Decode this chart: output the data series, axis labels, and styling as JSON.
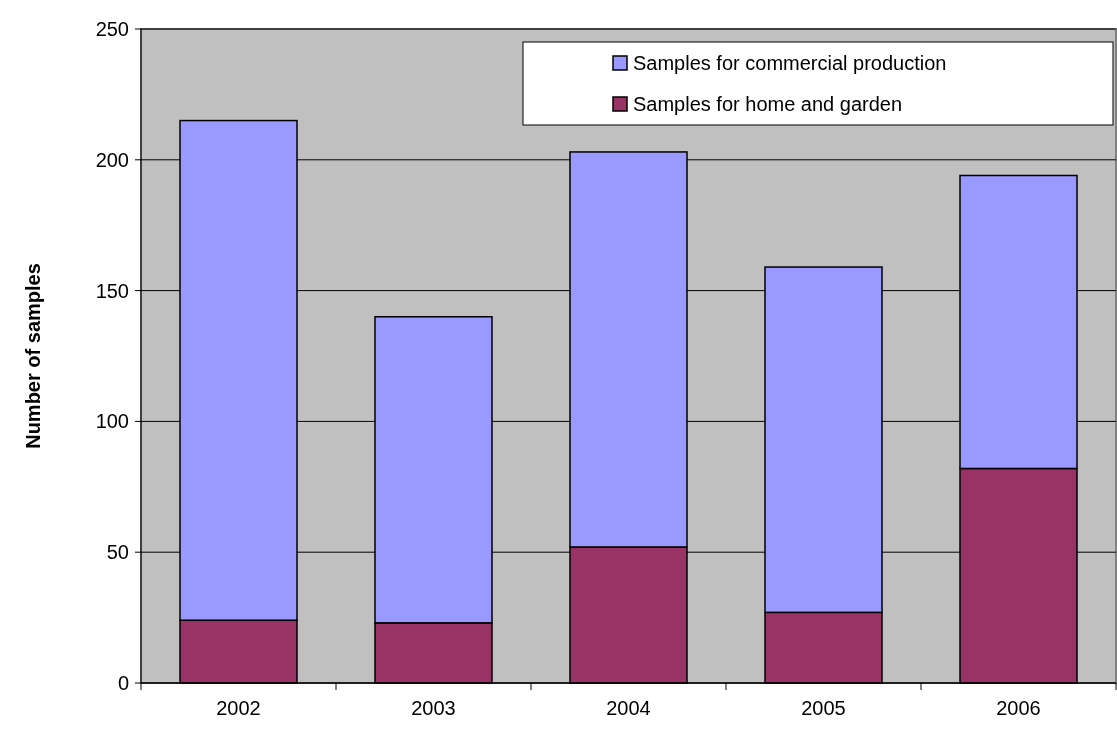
{
  "chart_data": {
    "type": "bar",
    "stacked": true,
    "ylabel": "Number of samples",
    "categories": [
      "2002",
      "2003",
      "2004",
      "2005",
      "2006"
    ],
    "series": [
      {
        "name": "Samples for home and garden",
        "color": "#993366",
        "values": [
          24,
          23,
          52,
          27,
          82
        ]
      },
      {
        "name": "Samples for commercial production",
        "color": "#9999ff",
        "values": [
          191,
          117,
          151,
          132,
          112
        ]
      }
    ],
    "ylim": [
      0,
      250
    ],
    "yticks": [
      0,
      50,
      100,
      150,
      200,
      250
    ],
    "grid": "y",
    "legend": "top right"
  }
}
